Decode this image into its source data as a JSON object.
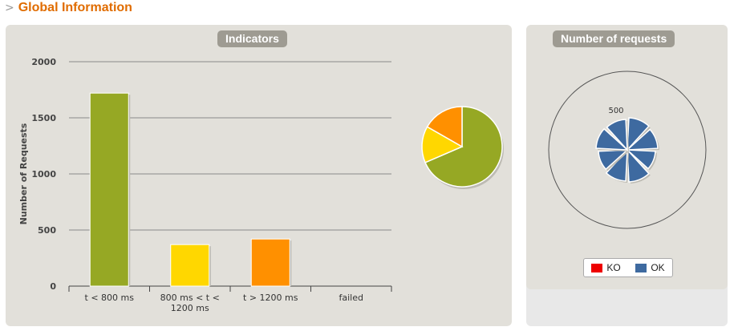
{
  "header": {
    "chevron": ">",
    "title": "Global Information"
  },
  "indicators": {
    "title": "Indicators"
  },
  "requests": {
    "title": "Number of requests",
    "radial_tick": "500"
  },
  "legend": [
    {
      "label": "KO",
      "color": "#ee0000"
    },
    {
      "label": "OK",
      "color": "#3e6aa0"
    }
  ],
  "chart_data": [
    {
      "type": "bar",
      "title": "Indicators",
      "categories": [
        "t < 800 ms",
        "800 ms < t < 1200 ms",
        "t > 1200 ms",
        "failed"
      ],
      "category_lines": [
        [
          "t < 800 ms"
        ],
        [
          "800 ms < t <",
          "1200 ms"
        ],
        [
          "t > 1200 ms"
        ],
        [
          "failed"
        ]
      ],
      "values": [
        1720,
        370,
        420,
        0
      ],
      "colors": [
        "#96a824",
        "#ffd700",
        "#ff9000",
        "#ee0000"
      ],
      "ylabel": "Number of Requests",
      "ylim": [
        0,
        2000
      ],
      "yticks": [
        0,
        500,
        1000,
        1500,
        2000
      ],
      "grid": true
    },
    {
      "type": "pie",
      "labels": [
        "t < 800 ms",
        "800 ms < t < 1200 ms",
        "t > 1200 ms"
      ],
      "values": [
        1720,
        370,
        420
      ],
      "colors": [
        "#96a824",
        "#ffd700",
        "#ff9000"
      ]
    },
    {
      "type": "radial-bar",
      "title": "Number of requests",
      "series": [
        {
          "name": "OK",
          "values": [
            400,
            380,
            350,
            400,
            390,
            360,
            390,
            380
          ]
        },
        {
          "name": "KO",
          "values": [
            0,
            0,
            0,
            0,
            0,
            0,
            0,
            0
          ]
        }
      ],
      "rmax": 500,
      "tick": 500
    }
  ]
}
